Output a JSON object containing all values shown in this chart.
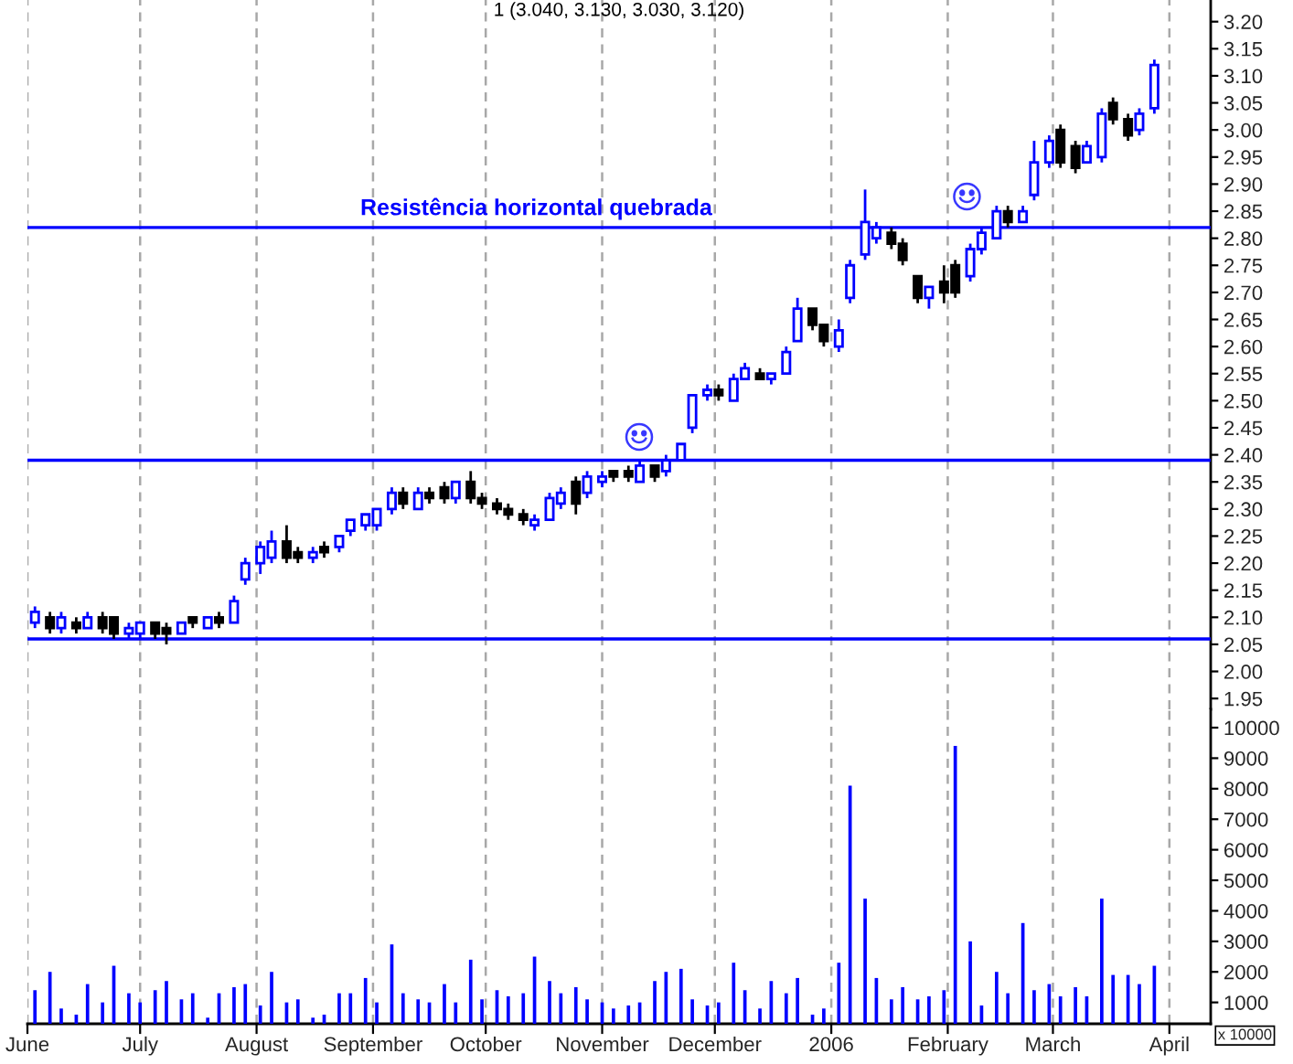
{
  "chart_data": [
    {
      "type": "candlestick",
      "title": "1 (3.040, 3.130, 3.030, 3.120)",
      "x": [
        "2005-06-03",
        "2005-06-07",
        "2005-06-10",
        "2005-06-14",
        "2005-06-17",
        "2005-06-21",
        "2005-06-24",
        "2005-06-28",
        "2005-07-01",
        "2005-07-05",
        "2005-07-08",
        "2005-07-12",
        "2005-07-15",
        "2005-07-19",
        "2005-07-22",
        "2005-07-26",
        "2005-07-29",
        "2005-08-02",
        "2005-08-05",
        "2005-08-09",
        "2005-08-12",
        "2005-08-16",
        "2005-08-19",
        "2005-08-23",
        "2005-08-26",
        "2005-08-30",
        "2005-09-02",
        "2005-09-06",
        "2005-09-09",
        "2005-09-13",
        "2005-09-16",
        "2005-09-20",
        "2005-09-23",
        "2005-09-27",
        "2005-09-30",
        "2005-10-04",
        "2005-10-07",
        "2005-10-11",
        "2005-10-14",
        "2005-10-18",
        "2005-10-21",
        "2005-10-25",
        "2005-10-28",
        "2005-11-01",
        "2005-11-04",
        "2005-11-08",
        "2005-11-11",
        "2005-11-15",
        "2005-11-18",
        "2005-11-22",
        "2005-11-25",
        "2005-11-29",
        "2005-12-02",
        "2005-12-06",
        "2005-12-09",
        "2005-12-13",
        "2005-12-16",
        "2005-12-20",
        "2005-12-23",
        "2005-12-27",
        "2005-12-30",
        "2006-01-03",
        "2006-01-06",
        "2006-01-10",
        "2006-01-13",
        "2006-01-17",
        "2006-01-20",
        "2006-01-24",
        "2006-01-27",
        "2006-01-31",
        "2006-02-03",
        "2006-02-07",
        "2006-02-10",
        "2006-02-14",
        "2006-02-17",
        "2006-02-21",
        "2006-02-24",
        "2006-02-28",
        "2006-03-03",
        "2006-03-07",
        "2006-03-10",
        "2006-03-14",
        "2006-03-17",
        "2006-03-21",
        "2006-03-24",
        "2006-03-28"
      ],
      "ohlc": [
        [
          2.09,
          2.12,
          2.08,
          2.11
        ],
        [
          2.1,
          2.11,
          2.07,
          2.08
        ],
        [
          2.08,
          2.11,
          2.07,
          2.1
        ],
        [
          2.09,
          2.1,
          2.07,
          2.08
        ],
        [
          2.08,
          2.11,
          2.08,
          2.1
        ],
        [
          2.1,
          2.11,
          2.07,
          2.08
        ],
        [
          2.1,
          2.1,
          2.06,
          2.07
        ],
        [
          2.07,
          2.09,
          2.06,
          2.08
        ],
        [
          2.07,
          2.09,
          2.06,
          2.09
        ],
        [
          2.09,
          2.09,
          2.06,
          2.07
        ],
        [
          2.08,
          2.09,
          2.05,
          2.07
        ],
        [
          2.07,
          2.09,
          2.07,
          2.09
        ],
        [
          2.1,
          2.1,
          2.08,
          2.09
        ],
        [
          2.08,
          2.1,
          2.08,
          2.1
        ],
        [
          2.1,
          2.11,
          2.08,
          2.09
        ],
        [
          2.09,
          2.14,
          2.09,
          2.13
        ],
        [
          2.17,
          2.21,
          2.16,
          2.2
        ],
        [
          2.2,
          2.24,
          2.18,
          2.23
        ],
        [
          2.21,
          2.26,
          2.2,
          2.24
        ],
        [
          2.24,
          2.27,
          2.2,
          2.21
        ],
        [
          2.22,
          2.23,
          2.2,
          2.21
        ],
        [
          2.21,
          2.23,
          2.2,
          2.22
        ],
        [
          2.23,
          2.24,
          2.21,
          2.22
        ],
        [
          2.23,
          2.25,
          2.22,
          2.25
        ],
        [
          2.26,
          2.28,
          2.25,
          2.28
        ],
        [
          2.27,
          2.29,
          2.26,
          2.29
        ],
        [
          2.27,
          2.3,
          2.26,
          2.3
        ],
        [
          2.3,
          2.34,
          2.29,
          2.33
        ],
        [
          2.33,
          2.34,
          2.3,
          2.31
        ],
        [
          2.3,
          2.34,
          2.3,
          2.33
        ],
        [
          2.33,
          2.34,
          2.31,
          2.32
        ],
        [
          2.34,
          2.35,
          2.31,
          2.32
        ],
        [
          2.32,
          2.35,
          2.31,
          2.35
        ],
        [
          2.35,
          2.37,
          2.31,
          2.32
        ],
        [
          2.32,
          2.33,
          2.3,
          2.31
        ],
        [
          2.31,
          2.32,
          2.29,
          2.3
        ],
        [
          2.3,
          2.31,
          2.28,
          2.29
        ],
        [
          2.29,
          2.3,
          2.27,
          2.28
        ],
        [
          2.27,
          2.29,
          2.26,
          2.28
        ],
        [
          2.28,
          2.33,
          2.28,
          2.32
        ],
        [
          2.31,
          2.34,
          2.3,
          2.33
        ],
        [
          2.35,
          2.36,
          2.29,
          2.31
        ],
        [
          2.33,
          2.37,
          2.32,
          2.36
        ],
        [
          2.35,
          2.37,
          2.34,
          2.36
        ],
        [
          2.37,
          2.37,
          2.35,
          2.36
        ],
        [
          2.37,
          2.38,
          2.35,
          2.36
        ],
        [
          2.35,
          2.39,
          2.35,
          2.38
        ],
        [
          2.38,
          2.38,
          2.35,
          2.36
        ],
        [
          2.37,
          2.4,
          2.36,
          2.39
        ],
        [
          2.39,
          2.42,
          2.39,
          2.42
        ],
        [
          2.45,
          2.51,
          2.44,
          2.51
        ],
        [
          2.51,
          2.53,
          2.5,
          2.52
        ],
        [
          2.52,
          2.53,
          2.5,
          2.51
        ],
        [
          2.5,
          2.55,
          2.5,
          2.54
        ],
        [
          2.54,
          2.57,
          2.54,
          2.56
        ],
        [
          2.55,
          2.56,
          2.54,
          2.54
        ],
        [
          2.54,
          2.55,
          2.53,
          2.55
        ],
        [
          2.55,
          2.6,
          2.55,
          2.59
        ],
        [
          2.61,
          2.69,
          2.61,
          2.67
        ],
        [
          2.67,
          2.67,
          2.63,
          2.64
        ],
        [
          2.64,
          2.64,
          2.6,
          2.61
        ],
        [
          2.6,
          2.65,
          2.59,
          2.63
        ],
        [
          2.69,
          2.76,
          2.68,
          2.75
        ],
        [
          2.77,
          2.89,
          2.76,
          2.83
        ],
        [
          2.8,
          2.83,
          2.79,
          2.82
        ],
        [
          2.81,
          2.82,
          2.78,
          2.79
        ],
        [
          2.79,
          2.8,
          2.75,
          2.76
        ],
        [
          2.73,
          2.73,
          2.68,
          2.69
        ],
        [
          2.69,
          2.71,
          2.67,
          2.71
        ],
        [
          2.72,
          2.75,
          2.68,
          2.7
        ],
        [
          2.75,
          2.76,
          2.69,
          2.7
        ],
        [
          2.73,
          2.79,
          2.72,
          2.78
        ],
        [
          2.78,
          2.82,
          2.77,
          2.81
        ],
        [
          2.8,
          2.86,
          2.8,
          2.85
        ],
        [
          2.85,
          2.86,
          2.82,
          2.83
        ],
        [
          2.83,
          2.86,
          2.83,
          2.85
        ],
        [
          2.88,
          2.98,
          2.87,
          2.94
        ],
        [
          2.94,
          2.99,
          2.93,
          2.98
        ],
        [
          3.0,
          3.01,
          2.93,
          2.94
        ],
        [
          2.97,
          2.98,
          2.92,
          2.93
        ],
        [
          2.94,
          2.98,
          2.94,
          2.97
        ],
        [
          2.95,
          3.04,
          2.94,
          3.03
        ],
        [
          3.05,
          3.06,
          3.01,
          3.02
        ],
        [
          3.02,
          3.03,
          2.98,
          2.99
        ],
        [
          3.0,
          3.04,
          2.99,
          3.03
        ],
        [
          3.04,
          3.13,
          3.03,
          3.12
        ]
      ],
      "colors": [
        "#0000ff",
        "#000000",
        "#0000ff",
        "#000000",
        "#0000ff",
        "#000000",
        "#000000",
        "#0000ff",
        "#0000ff",
        "#000000",
        "#000000",
        "#0000ff",
        "#000000",
        "#0000ff",
        "#000000",
        "#0000ff",
        "#0000ff",
        "#0000ff",
        "#0000ff",
        "#000000",
        "#000000",
        "#0000ff",
        "#000000",
        "#0000ff",
        "#0000ff",
        "#0000ff",
        "#0000ff",
        "#0000ff",
        "#000000",
        "#0000ff",
        "#000000",
        "#000000",
        "#0000ff",
        "#000000",
        "#000000",
        "#000000",
        "#000000",
        "#000000",
        "#0000ff",
        "#0000ff",
        "#0000ff",
        "#000000",
        "#0000ff",
        "#0000ff",
        "#000000",
        "#000000",
        "#0000ff",
        "#000000",
        "#0000ff",
        "#0000ff",
        "#0000ff",
        "#0000ff",
        "#000000",
        "#0000ff",
        "#0000ff",
        "#000000",
        "#0000ff",
        "#0000ff",
        "#0000ff",
        "#000000",
        "#000000",
        "#0000ff",
        "#0000ff",
        "#0000ff",
        "#0000ff",
        "#000000",
        "#000000",
        "#000000",
        "#0000ff",
        "#000000",
        "#000000",
        "#0000ff",
        "#0000ff",
        "#0000ff",
        "#000000",
        "#0000ff",
        "#0000ff",
        "#0000ff",
        "#000000",
        "#000000",
        "#0000ff",
        "#0000ff",
        "#000000",
        "#000000",
        "#0000ff",
        "#0000ff"
      ],
      "xlim": [
        "2005-06-01",
        "2006-04-12"
      ],
      "xticks": [
        {
          "value": "2005-06-01",
          "label": null
        },
        {
          "value": "2005-07-01",
          "label": null
        },
        {
          "value": "2005-08-01",
          "label": null
        },
        {
          "value": "2005-09-01",
          "label": null
        },
        {
          "value": "2005-10-01",
          "label": null
        },
        {
          "value": "2005-11-01",
          "label": null
        },
        {
          "value": "2005-12-01",
          "label": null
        },
        {
          "value": "2006-01-01",
          "label": null
        },
        {
          "value": "2006-02-01",
          "label": null
        },
        {
          "value": "2006-03-01",
          "label": null
        },
        {
          "value": "2006-04-01",
          "label": null
        }
      ],
      "ylim": [
        1.93,
        3.24
      ],
      "yticks": [
        1.95,
        {
          "value": 2.0,
          "label": "2.00"
        },
        2.05,
        {
          "value": 2.1,
          "label": "2.10"
        },
        2.15,
        {
          "value": 2.2,
          "label": "2.20"
        },
        2.25,
        {
          "value": 2.3,
          "label": "2.30"
        },
        2.35,
        {
          "value": 2.4,
          "label": "2.40"
        },
        2.45,
        {
          "value": 2.5,
          "label": "2.50"
        },
        2.55,
        {
          "value": 2.6,
          "label": "2.60"
        },
        2.65,
        {
          "value": 2.7,
          "label": "2.70"
        },
        2.75,
        {
          "value": 2.8,
          "label": "2.80"
        },
        2.85,
        {
          "value": 2.9,
          "label": "2.90"
        },
        2.95,
        {
          "value": 3.0,
          "label": "3.00"
        },
        3.05,
        {
          "value": 3.1,
          "label": "3.10"
        },
        3.15,
        {
          "value": 3.2,
          "label": "3.20"
        }
      ],
      "grid": "x",
      "tick_labels": "y",
      "ref_lines": [
        {
          "axis": "y",
          "value": 2.82,
          "label": "Resistência horizontal quebrada",
          "color": "#0000ff"
        },
        {
          "axis": "y",
          "value": 2.39,
          "color": "#0000ff"
        },
        {
          "axis": "y",
          "value": 2.06,
          "color": "#0000ff"
        }
      ]
    },
    {
      "type": "bar",
      "x": [
        "2005-06-03",
        "2005-06-07",
        "2005-06-10",
        "2005-06-14",
        "2005-06-17",
        "2005-06-21",
        "2005-06-24",
        "2005-06-28",
        "2005-07-01",
        "2005-07-05",
        "2005-07-08",
        "2005-07-12",
        "2005-07-15",
        "2005-07-19",
        "2005-07-22",
        "2005-07-26",
        "2005-07-29",
        "2005-08-02",
        "2005-08-05",
        "2005-08-09",
        "2005-08-12",
        "2005-08-16",
        "2005-08-19",
        "2005-08-23",
        "2005-08-26",
        "2005-08-30",
        "2005-09-02",
        "2005-09-06",
        "2005-09-09",
        "2005-09-13",
        "2005-09-16",
        "2005-09-20",
        "2005-09-23",
        "2005-09-27",
        "2005-09-30",
        "2005-10-04",
        "2005-10-07",
        "2005-10-11",
        "2005-10-14",
        "2005-10-18",
        "2005-10-21",
        "2005-10-25",
        "2005-10-28",
        "2005-11-01",
        "2005-11-04",
        "2005-11-08",
        "2005-11-11",
        "2005-11-15",
        "2005-11-18",
        "2005-11-22",
        "2005-11-25",
        "2005-11-29",
        "2005-12-02",
        "2005-12-06",
        "2005-12-09",
        "2005-12-13",
        "2005-12-16",
        "2005-12-20",
        "2005-12-23",
        "2005-12-27",
        "2005-12-30",
        "2006-01-03",
        "2006-01-06",
        "2006-01-10",
        "2006-01-13",
        "2006-01-17",
        "2006-01-20",
        "2006-01-24",
        "2006-01-27",
        "2006-01-31",
        "2006-02-03",
        "2006-02-07",
        "2006-02-10",
        "2006-02-14",
        "2006-02-17",
        "2006-02-21",
        "2006-02-24",
        "2006-02-28",
        "2006-03-03",
        "2006-03-07",
        "2006-03-10",
        "2006-03-14",
        "2006-03-17",
        "2006-03-21",
        "2006-03-24",
        "2006-03-28"
      ],
      "values": [
        1400,
        2000,
        800,
        600,
        1600,
        1000,
        2200,
        1300,
        1000,
        1400,
        1700,
        1100,
        1300,
        500,
        1300,
        1500,
        1600,
        900,
        2000,
        1000,
        1100,
        500,
        600,
        1300,
        1300,
        1800,
        1000,
        2900,
        1300,
        1100,
        1000,
        1600,
        1000,
        2400,
        1100,
        1400,
        1200,
        1300,
        2500,
        1700,
        1300,
        1500,
        1100,
        1000,
        800,
        900,
        1000,
        1700,
        2000,
        2100,
        1100,
        900,
        1000,
        2300,
        1400,
        800,
        1700,
        1300,
        1800,
        600,
        800,
        2300,
        8100,
        4400,
        1800,
        1100,
        1500,
        1100,
        1200,
        1400,
        9400,
        3000,
        900,
        2000,
        1300,
        3600,
        1400,
        1600,
        1200,
        1500,
        1200,
        4400,
        1900,
        1900,
        1600,
        2200
      ],
      "color": "#0000ff",
      "xlim": [
        "2005-06-01",
        "2006-04-12"
      ],
      "xticks": [
        {
          "value": "2005-06-01",
          "label": "June"
        },
        {
          "value": "2005-07-01",
          "label": "July"
        },
        {
          "value": "2005-08-01",
          "label": "August"
        },
        {
          "value": "2005-09-01",
          "label": "September"
        },
        {
          "value": "2005-10-01",
          "label": "October"
        },
        {
          "value": "2005-11-01",
          "label": "November"
        },
        {
          "value": "2005-12-01",
          "label": "December"
        },
        {
          "value": "2006-01-01",
          "label": "2006"
        },
        {
          "value": "2006-02-01",
          "label": "February"
        },
        {
          "value": "2006-03-01",
          "label": "March"
        },
        {
          "value": "2006-04-01",
          "label": "April"
        }
      ],
      "ylim": [
        300,
        10600
      ],
      "yticks": [
        1000,
        2000,
        3000,
        4000,
        5000,
        6000,
        7000,
        8000,
        9000,
        10000
      ],
      "grid": "x",
      "annotations": [
        "x 10000"
      ]
    }
  ]
}
